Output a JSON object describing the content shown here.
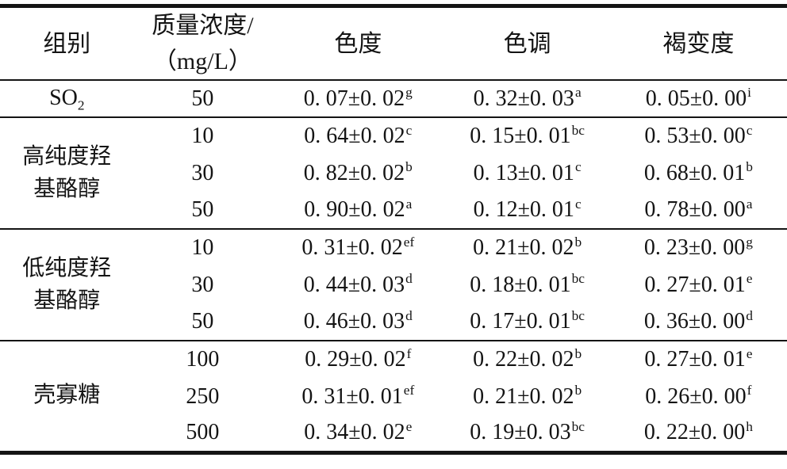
{
  "header": {
    "group": "组别",
    "concentration_line1": "质量浓度/",
    "concentration_line2": "（mg/L）",
    "chroma": "色度",
    "hue": "色调",
    "browning": "褐变度"
  },
  "table": {
    "groups": [
      {
        "name": "SO",
        "name_sub": "2",
        "rows": [
          {
            "concentration": "50",
            "chroma": {
              "value": "0. 07±0. 02",
              "sup": "g"
            },
            "hue": {
              "value": "0. 32±0. 03",
              "sup": "a"
            },
            "browning": {
              "value": "0. 05±0. 00",
              "sup": "i"
            }
          }
        ]
      },
      {
        "name": "高纯度羟基酪醇",
        "name_sub": "",
        "rows": [
          {
            "concentration": "10",
            "chroma": {
              "value": "0. 64±0. 02",
              "sup": "c"
            },
            "hue": {
              "value": "0. 15±0. 01",
              "sup": "bc"
            },
            "browning": {
              "value": "0. 53±0. 00",
              "sup": "c"
            }
          },
          {
            "concentration": "30",
            "chroma": {
              "value": "0. 82±0. 02",
              "sup": "b"
            },
            "hue": {
              "value": "0. 13±0. 01",
              "sup": "c"
            },
            "browning": {
              "value": "0. 68±0. 01",
              "sup": "b"
            }
          },
          {
            "concentration": "50",
            "chroma": {
              "value": "0. 90±0. 02",
              "sup": "a"
            },
            "hue": {
              "value": "0. 12±0. 01",
              "sup": "c"
            },
            "browning": {
              "value": "0. 78±0. 00",
              "sup": "a"
            }
          }
        ]
      },
      {
        "name": "低纯度羟基酪醇",
        "name_sub": "",
        "rows": [
          {
            "concentration": "10",
            "chroma": {
              "value": "0. 31±0. 02",
              "sup": "ef"
            },
            "hue": {
              "value": "0. 21±0. 02",
              "sup": "b"
            },
            "browning": {
              "value": "0. 23±0. 00",
              "sup": "g"
            }
          },
          {
            "concentration": "30",
            "chroma": {
              "value": "0. 44±0. 03",
              "sup": "d"
            },
            "hue": {
              "value": "0. 18±0. 01",
              "sup": "bc"
            },
            "browning": {
              "value": "0. 27±0. 01",
              "sup": "e"
            }
          },
          {
            "concentration": "50",
            "chroma": {
              "value": "0. 46±0. 03",
              "sup": "d"
            },
            "hue": {
              "value": "0. 17±0. 01",
              "sup": "bc"
            },
            "browning": {
              "value": "0. 36±0. 00",
              "sup": "d"
            }
          }
        ]
      },
      {
        "name": "壳寡糖",
        "name_sub": "",
        "rows": [
          {
            "concentration": "100",
            "chroma": {
              "value": "0. 29±0. 02",
              "sup": "f"
            },
            "hue": {
              "value": "0. 22±0. 02",
              "sup": "b"
            },
            "browning": {
              "value": "0. 27±0. 01",
              "sup": "e"
            }
          },
          {
            "concentration": "250",
            "chroma": {
              "value": "0. 31±0. 01",
              "sup": "ef"
            },
            "hue": {
              "value": "0. 21±0. 02",
              "sup": "b"
            },
            "browning": {
              "value": "0. 26±0. 00",
              "sup": "f"
            }
          },
          {
            "concentration": "500",
            "chroma": {
              "value": "0. 34±0. 02",
              "sup": "e"
            },
            "hue": {
              "value": "0. 19±0. 03",
              "sup": "bc"
            },
            "browning": {
              "value": "0. 22±0. 00",
              "sup": "h"
            }
          }
        ]
      }
    ]
  }
}
